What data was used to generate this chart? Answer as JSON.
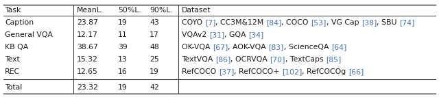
{
  "header": [
    "Task",
    "MeanL.",
    "50%L.",
    "90%L.",
    "Dataset"
  ],
  "rows": [
    {
      "task": "Caption",
      "meanl": "23.87",
      "p50": "19",
      "p90": "43",
      "dataset_parts": [
        {
          "text": "COYO ",
          "color": "#1a1a1a"
        },
        {
          "text": "[7]",
          "color": "#4472C4"
        },
        {
          "text": ", CC3M&12M ",
          "color": "#1a1a1a"
        },
        {
          "text": "[84]",
          "color": "#4472C4"
        },
        {
          "text": ", COCO ",
          "color": "#1a1a1a"
        },
        {
          "text": "[53]",
          "color": "#4472C4"
        },
        {
          "text": ", VG Cap ",
          "color": "#1a1a1a"
        },
        {
          "text": "[38]",
          "color": "#4472C4"
        },
        {
          "text": ", SBU ",
          "color": "#1a1a1a"
        },
        {
          "text": "[74]",
          "color": "#4472C4"
        }
      ]
    },
    {
      "task": "General VQA",
      "meanl": "12.17",
      "p50": "11",
      "p90": "17",
      "dataset_parts": [
        {
          "text": "VQAv2 ",
          "color": "#1a1a1a"
        },
        {
          "text": "[31]",
          "color": "#4472C4"
        },
        {
          "text": ", GQA ",
          "color": "#1a1a1a"
        },
        {
          "text": "[34]",
          "color": "#4472C4"
        }
      ]
    },
    {
      "task": "KB QA",
      "meanl": "38.67",
      "p50": "39",
      "p90": "48",
      "dataset_parts": [
        {
          "text": "OK-VQA ",
          "color": "#1a1a1a"
        },
        {
          "text": "[67]",
          "color": "#4472C4"
        },
        {
          "text": ", AOK-VQA ",
          "color": "#1a1a1a"
        },
        {
          "text": "[83]",
          "color": "#4472C4"
        },
        {
          "text": ", ScienceQA ",
          "color": "#1a1a1a"
        },
        {
          "text": "[64]",
          "color": "#4472C4"
        }
      ]
    },
    {
      "task": "Text",
      "meanl": "15.32",
      "p50": "13",
      "p90": "25",
      "dataset_parts": [
        {
          "text": "TextVQA ",
          "color": "#1a1a1a"
        },
        {
          "text": "[86]",
          "color": "#4472C4"
        },
        {
          "text": ", OCRVQA ",
          "color": "#1a1a1a"
        },
        {
          "text": "[70]",
          "color": "#4472C4"
        },
        {
          "text": ", TextCaps ",
          "color": "#1a1a1a"
        },
        {
          "text": "[85]",
          "color": "#4472C4"
        }
      ]
    },
    {
      "task": "REC",
      "meanl": "12.65",
      "p50": "16",
      "p90": "19",
      "dataset_parts": [
        {
          "text": "RefCOCO ",
          "color": "#1a1a1a"
        },
        {
          "text": "[37]",
          "color": "#4472C4"
        },
        {
          "text": ", RefCOCO+ ",
          "color": "#1a1a1a"
        },
        {
          "text": "[102]",
          "color": "#4472C4"
        },
        {
          "text": ", RefCOCOg ",
          "color": "#1a1a1a"
        },
        {
          "text": "[66]",
          "color": "#4472C4"
        }
      ]
    }
  ],
  "total": {
    "task": "Total",
    "meanl": "23.32",
    "p50": "19",
    "p90": "42"
  },
  "font_size": 7.8,
  "figw": 6.4,
  "figh": 1.42,
  "dpi": 100
}
